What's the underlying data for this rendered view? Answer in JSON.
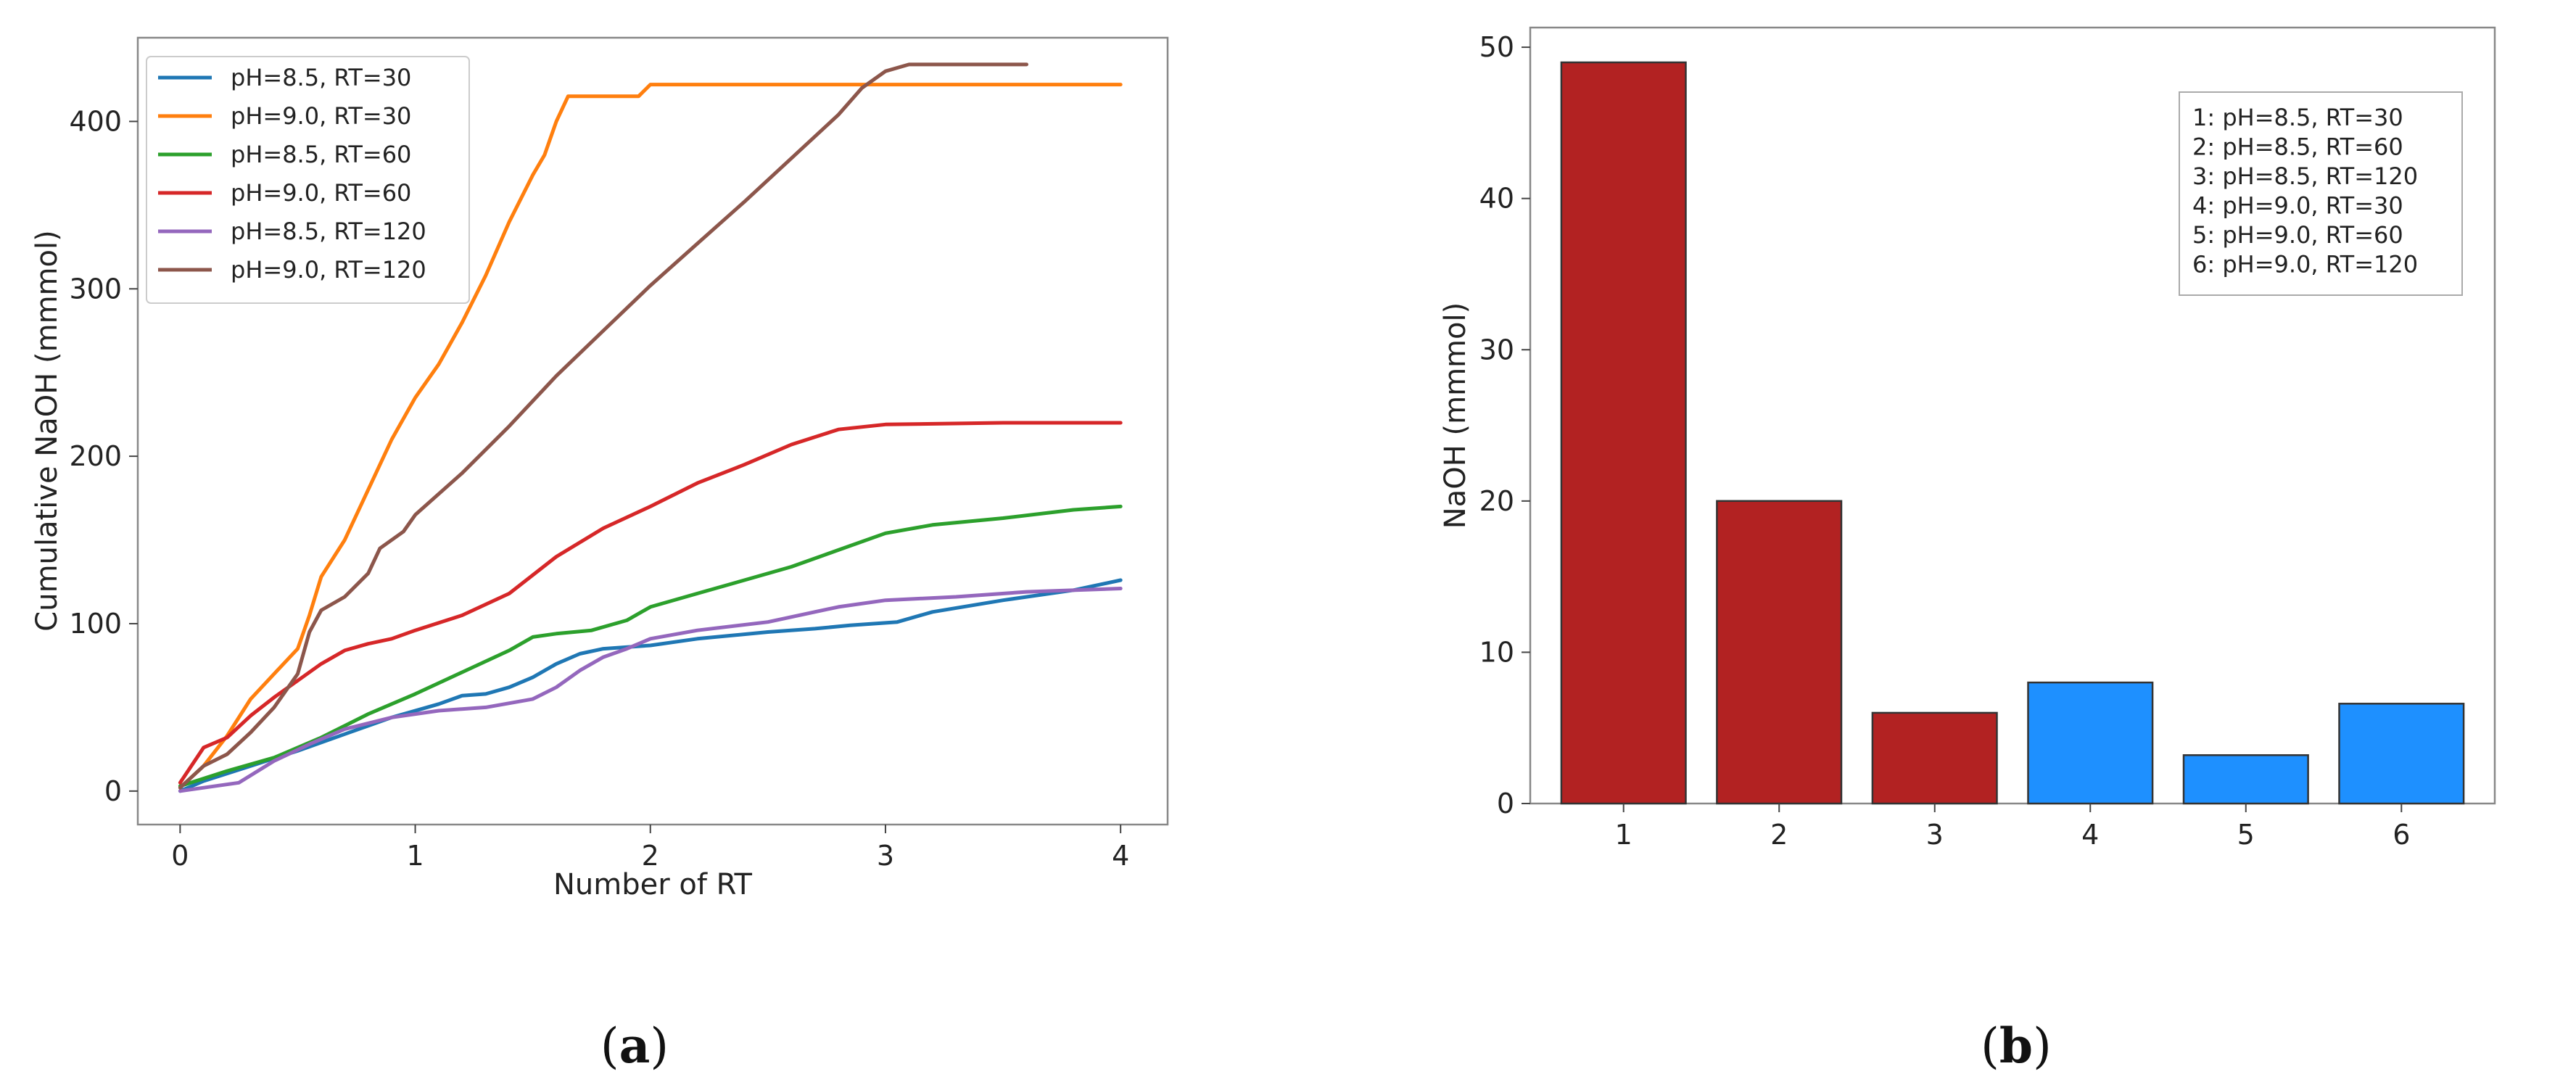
{
  "chart_data": [
    {
      "type": "line",
      "caption": "(a)",
      "caption_letter": "a",
      "xlabel": "Number of RT",
      "ylabel": "Cumulative NaOH (mmmol)",
      "xlim": [
        -0.18,
        4.2
      ],
      "ylim": [
        -20,
        450
      ],
      "xticks": [
        0,
        1,
        2,
        3,
        4
      ],
      "yticks": [
        0,
        100,
        200,
        300,
        400
      ],
      "grid": false,
      "legend_position": "upper-left",
      "series": [
        {
          "name": "pH=8.5, RT=30",
          "color": "#1f77b4",
          "points": [
            [
              0,
              0
            ],
            [
              0.1,
              6
            ],
            [
              0.3,
              15
            ],
            [
              0.5,
              24
            ],
            [
              0.7,
              34
            ],
            [
              0.9,
              44
            ],
            [
              1.1,
              52
            ],
            [
              1.2,
              57
            ],
            [
              1.3,
              58
            ],
            [
              1.4,
              62
            ],
            [
              1.5,
              68
            ],
            [
              1.6,
              76
            ],
            [
              1.7,
              82
            ],
            [
              1.8,
              85
            ],
            [
              2.0,
              87
            ],
            [
              2.2,
              91
            ],
            [
              2.5,
              95
            ],
            [
              2.7,
              97
            ],
            [
              2.85,
              99
            ],
            [
              2.95,
              100
            ],
            [
              3.05,
              101
            ],
            [
              3.2,
              107
            ],
            [
              3.5,
              114
            ],
            [
              3.8,
              120
            ],
            [
              4.0,
              126
            ]
          ]
        },
        {
          "name": "pH=9.0, RT=30",
          "color": "#ff7f0e",
          "points": [
            [
              0,
              2
            ],
            [
              0.1,
              15
            ],
            [
              0.2,
              33
            ],
            [
              0.3,
              55
            ],
            [
              0.4,
              70
            ],
            [
              0.5,
              85
            ],
            [
              0.55,
              105
            ],
            [
              0.6,
              128
            ],
            [
              0.7,
              150
            ],
            [
              0.8,
              180
            ],
            [
              0.9,
              210
            ],
            [
              1.0,
              235
            ],
            [
              1.1,
              255
            ],
            [
              1.2,
              280
            ],
            [
              1.3,
              308
            ],
            [
              1.4,
              340
            ],
            [
              1.5,
              368
            ],
            [
              1.55,
              380
            ],
            [
              1.6,
              400
            ],
            [
              1.65,
              415
            ],
            [
              1.8,
              415
            ],
            [
              1.95,
              415
            ],
            [
              2.0,
              422
            ],
            [
              3.0,
              422
            ],
            [
              4.0,
              422
            ]
          ]
        },
        {
          "name": "pH=8.5, RT=60",
          "color": "#2ca02c",
          "points": [
            [
              0,
              3
            ],
            [
              0.2,
              12
            ],
            [
              0.4,
              20
            ],
            [
              0.6,
              32
            ],
            [
              0.8,
              46
            ],
            [
              1.0,
              58
            ],
            [
              1.2,
              71
            ],
            [
              1.4,
              84
            ],
            [
              1.5,
              92
            ],
            [
              1.6,
              94
            ],
            [
              1.75,
              96
            ],
            [
              1.9,
              102
            ],
            [
              2.0,
              110
            ],
            [
              2.2,
              118
            ],
            [
              2.4,
              126
            ],
            [
              2.6,
              134
            ],
            [
              2.8,
              144
            ],
            [
              3.0,
              154
            ],
            [
              3.2,
              159
            ],
            [
              3.5,
              163
            ],
            [
              3.8,
              168
            ],
            [
              4.0,
              170
            ]
          ]
        },
        {
          "name": "pH=9.0, RT=60",
          "color": "#d62728",
          "points": [
            [
              0,
              5
            ],
            [
              0.1,
              26
            ],
            [
              0.2,
              32
            ],
            [
              0.3,
              45
            ],
            [
              0.4,
              56
            ],
            [
              0.5,
              66
            ],
            [
              0.6,
              76
            ],
            [
              0.7,
              84
            ],
            [
              0.8,
              88
            ],
            [
              0.9,
              91
            ],
            [
              1.0,
              96
            ],
            [
              1.2,
              105
            ],
            [
              1.4,
              118
            ],
            [
              1.6,
              140
            ],
            [
              1.8,
              157
            ],
            [
              2.0,
              170
            ],
            [
              2.2,
              184
            ],
            [
              2.4,
              195
            ],
            [
              2.6,
              207
            ],
            [
              2.8,
              216
            ],
            [
              3.0,
              219
            ],
            [
              3.5,
              220
            ],
            [
              4.0,
              220
            ]
          ]
        },
        {
          "name": "pH=8.5, RT=120",
          "color": "#9467bd",
          "points": [
            [
              0,
              0
            ],
            [
              0.1,
              2
            ],
            [
              0.25,
              5
            ],
            [
              0.4,
              18
            ],
            [
              0.55,
              28
            ],
            [
              0.7,
              37
            ],
            [
              0.9,
              44
            ],
            [
              1.1,
              48
            ],
            [
              1.3,
              50
            ],
            [
              1.5,
              55
            ],
            [
              1.6,
              62
            ],
            [
              1.7,
              72
            ],
            [
              1.8,
              80
            ],
            [
              1.9,
              85
            ],
            [
              2.0,
              91
            ],
            [
              2.2,
              96
            ],
            [
              2.5,
              101
            ],
            [
              2.8,
              110
            ],
            [
              3.0,
              114
            ],
            [
              3.3,
              116
            ],
            [
              3.6,
              119
            ],
            [
              4.0,
              121
            ]
          ]
        },
        {
          "name": "pH=9.0, RT=120",
          "color": "#8c564b",
          "points": [
            [
              0,
              2
            ],
            [
              0.1,
              15
            ],
            [
              0.2,
              22
            ],
            [
              0.3,
              35
            ],
            [
              0.4,
              50
            ],
            [
              0.5,
              70
            ],
            [
              0.55,
              95
            ],
            [
              0.6,
              108
            ],
            [
              0.7,
              116
            ],
            [
              0.8,
              130
            ],
            [
              0.85,
              145
            ],
            [
              0.95,
              155
            ],
            [
              1.0,
              165
            ],
            [
              1.2,
              190
            ],
            [
              1.4,
              218
            ],
            [
              1.6,
              248
            ],
            [
              1.8,
              275
            ],
            [
              2.0,
              302
            ],
            [
              2.2,
              327
            ],
            [
              2.4,
              352
            ],
            [
              2.6,
              378
            ],
            [
              2.8,
              404
            ],
            [
              2.9,
              420
            ],
            [
              3.0,
              430
            ],
            [
              3.1,
              434
            ],
            [
              3.4,
              434
            ],
            [
              3.6,
              434
            ]
          ]
        }
      ]
    },
    {
      "type": "bar",
      "caption": "(b)",
      "caption_letter": "b",
      "xlabel": "",
      "ylabel": "NaOH (mmmol)",
      "categories": [
        "1",
        "2",
        "3",
        "4",
        "5",
        "6"
      ],
      "values": [
        49,
        20,
        6,
        8,
        3.2,
        6.6
      ],
      "colors": [
        "#b22222",
        "#b22222",
        "#b22222",
        "#1e90ff",
        "#1e90ff",
        "#1e90ff"
      ],
      "ylim": [
        0,
        51.3
      ],
      "yticks": [
        0,
        10,
        20,
        30,
        40,
        50
      ],
      "grid": false,
      "legend_position": "upper-right",
      "legend_entries": [
        "1: pH=8.5, RT=30",
        "2: pH=8.5, RT=60",
        "3: pH=8.5, RT=120",
        "4: pH=9.0, RT=30",
        "5: pH=9.0, RT=60",
        "6: pH=9.0, RT=120"
      ]
    }
  ]
}
